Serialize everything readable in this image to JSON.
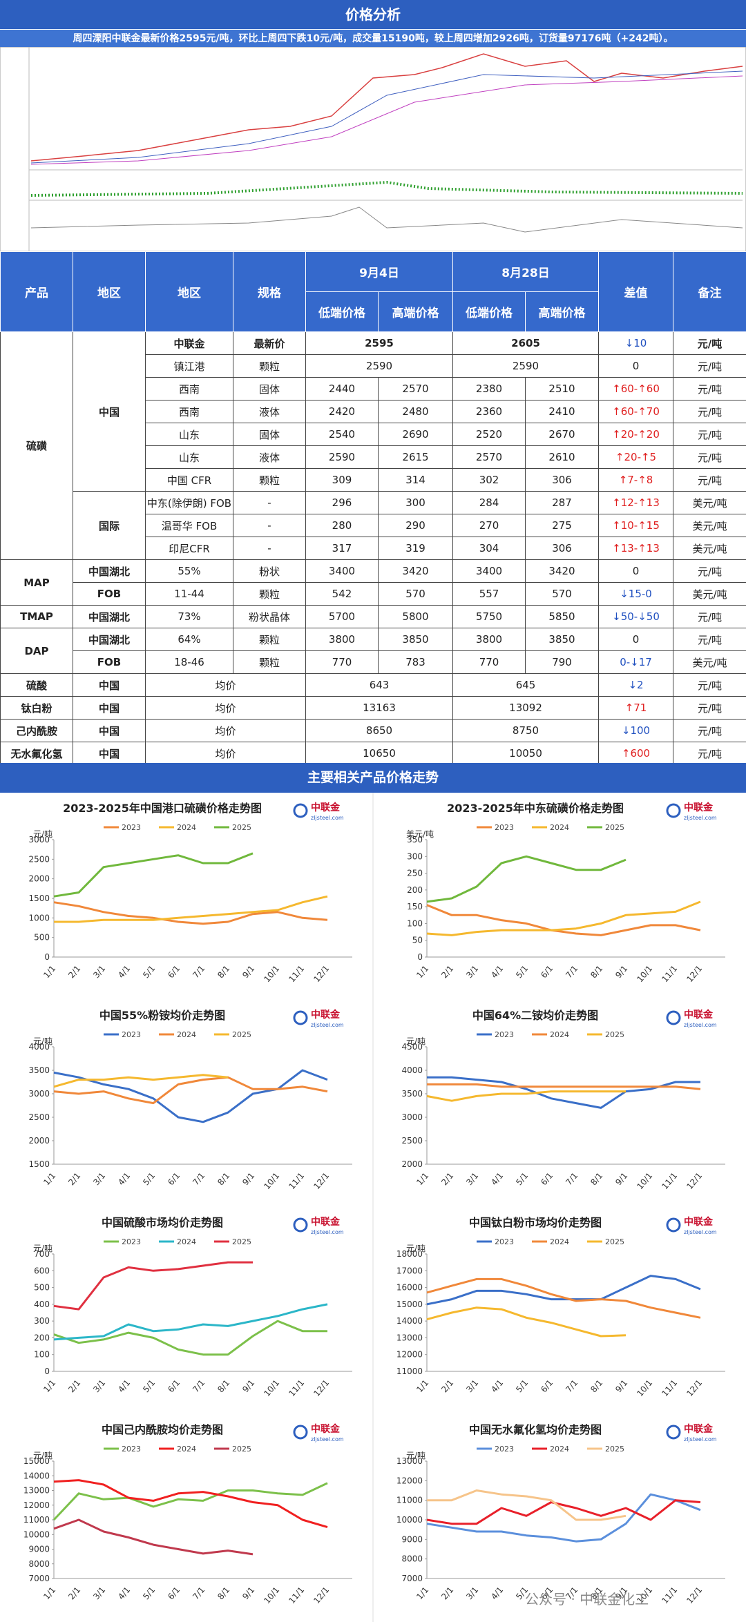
{
  "header": {
    "title": "价格分析",
    "summary": "周四溧阳中联金最新价格2595元/吨，环比上周四下跌10元/吨，成交量15190吨，较上周四增加2926吨，订货量97176吨（+242吨）。"
  },
  "table": {
    "header": {
      "product": "产品",
      "region1": "地区",
      "region2": "地区",
      "spec": "规格",
      "dates": [
        "9月4日",
        "8月28日"
      ],
      "low": "低端价格",
      "high": "高端价格",
      "diff": "差值",
      "note": "备注"
    },
    "rows": [
      [
        "硫磺",
        "中国",
        "中联金",
        "最新价",
        "2595",
        "2605",
        "↓10",
        "元/吨"
      ],
      [
        "镇江港",
        "颗粒",
        "2590",
        "2590",
        "0",
        "元/吨"
      ],
      [
        "西南",
        "固体",
        "2440",
        "2570",
        "2380",
        "2510",
        "↑60-↑60",
        "元/吨"
      ],
      [
        "西南",
        "液体",
        "2420",
        "2480",
        "2360",
        "2410",
        "↑60-↑70",
        "元/吨"
      ],
      [
        "山东",
        "固体",
        "2540",
        "2690",
        "2520",
        "2670",
        "↑20-↑20",
        "元/吨"
      ],
      [
        "山东",
        "液体",
        "2590",
        "2615",
        "2570",
        "2610",
        "↑20-↑5",
        "元/吨"
      ],
      [
        "中国 CFR",
        "颗粒",
        "309",
        "314",
        "302",
        "306",
        "↑7-↑8",
        "元/吨"
      ],
      [
        "国际",
        "中东(除伊朗) FOB",
        "-",
        "296",
        "300",
        "284",
        "287",
        "↑12-↑13",
        "美元/吨"
      ],
      [
        "温哥华 FOB",
        "-",
        "280",
        "290",
        "270",
        "275",
        "↑10-↑15",
        "美元/吨"
      ],
      [
        "印尼CFR",
        "-",
        "317",
        "319",
        "304",
        "306",
        "↑13-↑13",
        "美元/吨"
      ],
      [
        "MAP",
        "中国湖北",
        "55%",
        "粉状",
        "3400",
        "3420",
        "3400",
        "3420",
        "0",
        "元/吨"
      ],
      [
        "FOB",
        "11-44",
        "颗粒",
        "542",
        "570",
        "557",
        "570",
        "↓15-0",
        "美元/吨"
      ],
      [
        "TMAP",
        "中国湖北",
        "73%",
        "粉状晶体",
        "5700",
        "5800",
        "5750",
        "5850",
        "↓50-↓50",
        "元/吨"
      ],
      [
        "DAP",
        "中国湖北",
        "64%",
        "颗粒",
        "3800",
        "3850",
        "3800",
        "3850",
        "0",
        "元/吨"
      ],
      [
        "FOB",
        "18-46",
        "颗粒",
        "770",
        "783",
        "770",
        "790",
        "0-↓17",
        "美元/吨"
      ],
      [
        "硫酸",
        "中国",
        "均价",
        "643",
        "645",
        "↓2",
        "元/吨"
      ],
      [
        "钛白粉",
        "中国",
        "均价",
        "13163",
        "13092",
        "↑71",
        "元/吨"
      ],
      [
        "己内酰胺",
        "中国",
        "均价",
        "8650",
        "8750",
        "↓100",
        "元/吨"
      ],
      [
        "无水氟化氢",
        "中国",
        "均价",
        "10650",
        "10050",
        "↑600",
        "元/吨"
      ]
    ]
  },
  "section_title": "主要相关产品价格走势",
  "logo": {
    "name": "中联金",
    "url": "zljsteel.com"
  },
  "watermark": "公众号 · 中联金化工",
  "chart_data": [
    {
      "type": "line",
      "title": "2023-2025年中国港口硫磺价格走势图",
      "y_label": "元/吨",
      "categories": [
        "1/1",
        "2/1",
        "3/1",
        "4/1",
        "5/1",
        "6/1",
        "7/1",
        "8/1",
        "9/1",
        "10/1",
        "11/1",
        "12/1"
      ],
      "ylim": [
        0,
        3000
      ],
      "yticks": [
        0,
        500,
        1000,
        1500,
        2000,
        2500,
        3000
      ],
      "series": [
        {
          "name": "2023",
          "color": "#f0883a",
          "values": [
            1400,
            1300,
            1150,
            1050,
            1000,
            900,
            850,
            900,
            1100,
            1150,
            1000,
            950
          ]
        },
        {
          "name": "2024",
          "color": "#f5b82e",
          "values": [
            900,
            900,
            950,
            950,
            950,
            1000,
            1050,
            1100,
            1150,
            1200,
            1400,
            1550
          ]
        },
        {
          "name": "2025",
          "color": "#70b83c",
          "values": [
            1550,
            1650,
            2300,
            2400,
            2500,
            2600,
            2400,
            2400,
            2650,
            null,
            null,
            null
          ]
        }
      ]
    },
    {
      "type": "line",
      "title": "2023-2025年中东硫磺价格走势图",
      "y_label": "美元/吨",
      "categories": [
        "1/1",
        "2/1",
        "3/1",
        "4/1",
        "5/1",
        "6/1",
        "7/1",
        "8/1",
        "9/1",
        "10/1",
        "11/1",
        "12/1"
      ],
      "ylim": [
        0,
        350
      ],
      "yticks": [
        0,
        50,
        100,
        150,
        200,
        250,
        300,
        350
      ],
      "series": [
        {
          "name": "2023",
          "color": "#f0883a",
          "values": [
            155,
            125,
            125,
            110,
            100,
            80,
            70,
            65,
            80,
            95,
            95,
            80
          ]
        },
        {
          "name": "2024",
          "color": "#f5b82e",
          "values": [
            70,
            65,
            75,
            80,
            80,
            80,
            85,
            100,
            125,
            130,
            135,
            165
          ]
        },
        {
          "name": "2025",
          "color": "#70b83c",
          "values": [
            165,
            175,
            210,
            280,
            300,
            280,
            260,
            260,
            290,
            null,
            null,
            null
          ]
        }
      ]
    },
    {
      "type": "line",
      "title": "中国55%粉铵均价走势图",
      "y_label": "元/吨",
      "categories": [
        "1/1",
        "2/1",
        "3/1",
        "4/1",
        "5/1",
        "6/1",
        "7/1",
        "8/1",
        "9/1",
        "10/1",
        "11/1",
        "12/1"
      ],
      "ylim": [
        1500,
        4000
      ],
      "yticks": [
        1500,
        2000,
        2500,
        3000,
        3500,
        4000
      ],
      "series": [
        {
          "name": "2023",
          "color": "#3a6fc8",
          "values": [
            3450,
            3350,
            3200,
            3100,
            2900,
            2500,
            2400,
            2600,
            3000,
            3100,
            3500,
            3300
          ]
        },
        {
          "name": "2024",
          "color": "#f0883a",
          "values": [
            3050,
            3000,
            3050,
            2900,
            2800,
            3200,
            3300,
            3350,
            3100,
            3100,
            3150,
            3050
          ]
        },
        {
          "name": "2025",
          "color": "#f5b82e",
          "values": [
            3150,
            3300,
            3300,
            3350,
            3300,
            3350,
            3400,
            3350,
            null,
            null,
            null,
            null
          ]
        }
      ]
    },
    {
      "type": "line",
      "title": "中国64%二铵均价走势图",
      "y_label": "元/吨",
      "categories": [
        "1/1",
        "2/1",
        "3/1",
        "4/1",
        "5/1",
        "6/1",
        "7/1",
        "8/1",
        "9/1",
        "10/1",
        "11/1",
        "12/1"
      ],
      "ylim": [
        2000,
        4500
      ],
      "yticks": [
        2000,
        2500,
        3000,
        3500,
        4000,
        4500
      ],
      "series": [
        {
          "name": "2023",
          "color": "#3a6fc8",
          "values": [
            3850,
            3850,
            3800,
            3750,
            3600,
            3400,
            3300,
            3200,
            3550,
            3600,
            3750,
            3750
          ]
        },
        {
          "name": "2024",
          "color": "#f0883a",
          "values": [
            3700,
            3700,
            3700,
            3650,
            3650,
            3650,
            3650,
            3650,
            3650,
            3650,
            3650,
            3600
          ]
        },
        {
          "name": "2025",
          "color": "#f5b82e",
          "values": [
            3450,
            3350,
            3450,
            3500,
            3500,
            3550,
            3550,
            3550,
            3550,
            null,
            null,
            null
          ]
        }
      ]
    },
    {
      "type": "line",
      "title": "中国硫酸市场均价走势图",
      "y_label": "元/吨",
      "categories": [
        "1/1",
        "2/1",
        "3/1",
        "4/1",
        "5/1",
        "6/1",
        "7/1",
        "8/1",
        "9/1",
        "10/1",
        "11/1",
        "12/1"
      ],
      "ylim": [
        0,
        700
      ],
      "yticks": [
        0,
        100,
        200,
        300,
        400,
        500,
        600,
        700
      ],
      "series": [
        {
          "name": "2023",
          "color": "#7cc04a",
          "values": [
            220,
            170,
            190,
            230,
            200,
            130,
            100,
            100,
            210,
            300,
            240,
            240
          ]
        },
        {
          "name": "2024",
          "color": "#2bb6c8",
          "values": [
            190,
            200,
            210,
            280,
            240,
            250,
            280,
            270,
            300,
            330,
            370,
            400
          ]
        },
        {
          "name": "2025",
          "color": "#e03040",
          "values": [
            390,
            370,
            560,
            620,
            600,
            610,
            630,
            650,
            650,
            null,
            null,
            null
          ]
        }
      ]
    },
    {
      "type": "line",
      "title": "中国钛白粉市场均价走势图",
      "y_label": "元/吨",
      "categories": [
        "1/1",
        "2/1",
        "3/1",
        "4/1",
        "5/1",
        "6/1",
        "7/1",
        "8/1",
        "9/1",
        "10/1",
        "11/1",
        "12/1"
      ],
      "ylim": [
        11000,
        18000
      ],
      "yticks": [
        11000,
        12000,
        13000,
        14000,
        15000,
        16000,
        17000,
        18000
      ],
      "series": [
        {
          "name": "2023",
          "color": "#3a6fc8",
          "values": [
            15000,
            15300,
            15800,
            15800,
            15600,
            15300,
            15300,
            15300,
            16000,
            16700,
            16500,
            15900
          ]
        },
        {
          "name": "2024",
          "color": "#f0883a",
          "values": [
            15700,
            16100,
            16500,
            16500,
            16100,
            15600,
            15200,
            15300,
            15200,
            14800,
            14500,
            14200
          ]
        },
        {
          "name": "2025",
          "color": "#f5b82e",
          "values": [
            14100,
            14500,
            14800,
            14700,
            14200,
            13900,
            13500,
            13100,
            13150,
            null,
            null,
            null
          ]
        }
      ]
    },
    {
      "type": "line",
      "title": "中国己内酰胺均价走势图",
      "y_label": "元/吨",
      "categories": [
        "1/1",
        "2/1",
        "3/1",
        "4/1",
        "5/1",
        "6/1",
        "7/1",
        "8/1",
        "9/1",
        "10/1",
        "11/1",
        "12/1"
      ],
      "ylim": [
        7000,
        15000
      ],
      "yticks": [
        7000,
        8000,
        9000,
        10000,
        11000,
        12000,
        13000,
        14000,
        15000
      ],
      "series": [
        {
          "name": "2023",
          "color": "#7cc04a",
          "values": [
            11000,
            12800,
            12400,
            12500,
            11900,
            12400,
            12300,
            13000,
            13000,
            12800,
            12700,
            13500
          ]
        },
        {
          "name": "2024",
          "color": "#f02020",
          "values": [
            13600,
            13700,
            13400,
            12500,
            12300,
            12800,
            12900,
            12600,
            12200,
            12000,
            11000,
            10500
          ]
        },
        {
          "name": "2025",
          "color": "#c0394d",
          "values": [
            10400,
            11000,
            10200,
            9800,
            9300,
            9000,
            8700,
            8900,
            8650,
            null,
            null,
            null
          ]
        }
      ]
    },
    {
      "type": "line",
      "title": "中国无水氟化氢均价走势图",
      "y_label": "元/吨",
      "categories": [
        "1/1",
        "2/1",
        "3/1",
        "4/1",
        "5/1",
        "6/1",
        "7/1",
        "8/1",
        "9/1",
        "10/1",
        "11/1",
        "12/1"
      ],
      "ylim": [
        7000,
        13000
      ],
      "yticks": [
        7000,
        8000,
        9000,
        10000,
        11000,
        12000,
        13000
      ],
      "series": [
        {
          "name": "2023",
          "color": "#5b8fdc",
          "values": [
            9800,
            9600,
            9400,
            9400,
            9200,
            9100,
            8900,
            9000,
            9800,
            11300,
            11000,
            10500
          ]
        },
        {
          "name": "2024",
          "color": "#e8202a",
          "values": [
            10000,
            9800,
            9800,
            10600,
            10200,
            10900,
            10600,
            10200,
            10600,
            10000,
            11000,
            10900
          ]
        },
        {
          "name": "2025",
          "color": "#f6c48a",
          "values": [
            11000,
            11000,
            11500,
            11300,
            11200,
            11000,
            10000,
            10000,
            10200,
            null,
            null,
            null
          ]
        }
      ]
    }
  ]
}
